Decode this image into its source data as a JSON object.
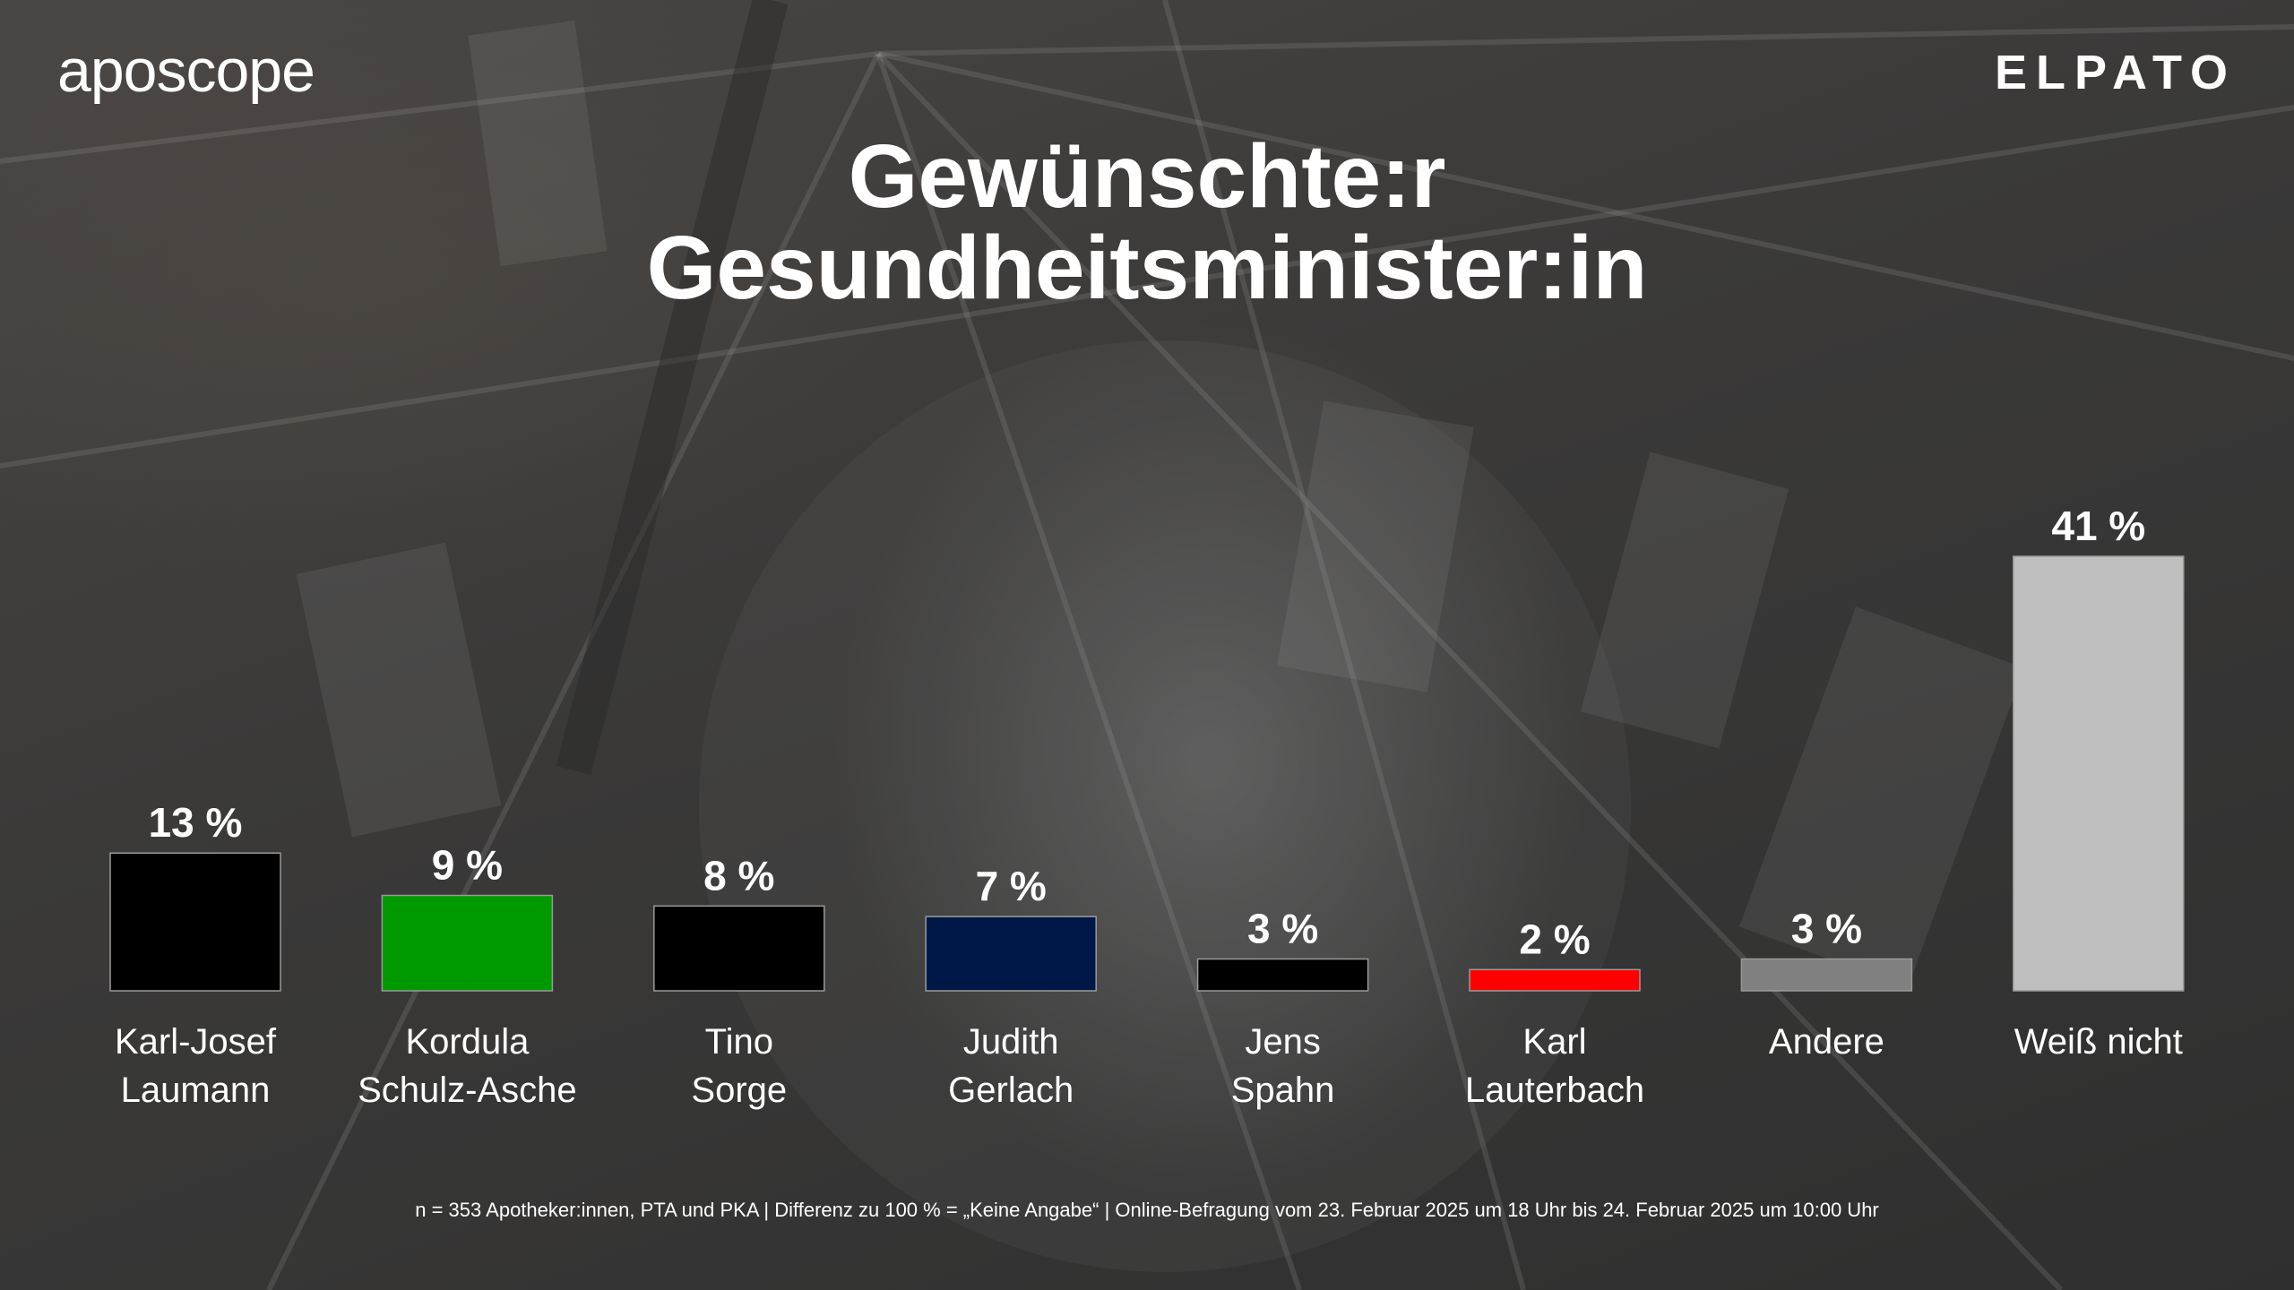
{
  "brand": {
    "left_logo": "aposcope",
    "right_logo": "ELPATO"
  },
  "colors": {
    "background": "#3a3a3a",
    "text": "#ffffff"
  },
  "chart_data": {
    "type": "bar",
    "title": "Gewünschte:r Gesundheitsminister:in",
    "title_lines": [
      "Gewünschte:r",
      "Gesundheitsminister:in"
    ],
    "categories": [
      [
        "Karl-Josef",
        "Laumann"
      ],
      [
        "Kordula",
        "Schulz-Asche"
      ],
      [
        "Tino",
        "Sorge"
      ],
      [
        "Judith",
        "Gerlach"
      ],
      [
        "Jens",
        "Spahn"
      ],
      [
        "Karl",
        "Lauterbach"
      ],
      [
        "Andere"
      ],
      [
        "Weiß nicht"
      ]
    ],
    "values": [
      13,
      9,
      8,
      7,
      3,
      2,
      3,
      41
    ],
    "value_labels": [
      "13 %",
      "9 %",
      "8 %",
      "7 %",
      "3 %",
      "2 %",
      "3 %",
      "41 %"
    ],
    "bar_colors": [
      "#000000",
      "#009900",
      "#000000",
      "#001847",
      "#000000",
      "#ff0000",
      "#808080",
      "#bfbfbf"
    ],
    "unit": "%",
    "ylim": [
      0,
      41
    ],
    "xlabel": "",
    "ylabel": "",
    "grid": false,
    "legend": "none"
  },
  "footnote": "n = 353 Apotheker:innen, PTA und PKA | Differenz zu 100 % = „Keine Angabe“ | Online-Befragung vom 23. Februar 2025 um 18 Uhr bis 24. Februar 2025 um 10:00 Uhr"
}
